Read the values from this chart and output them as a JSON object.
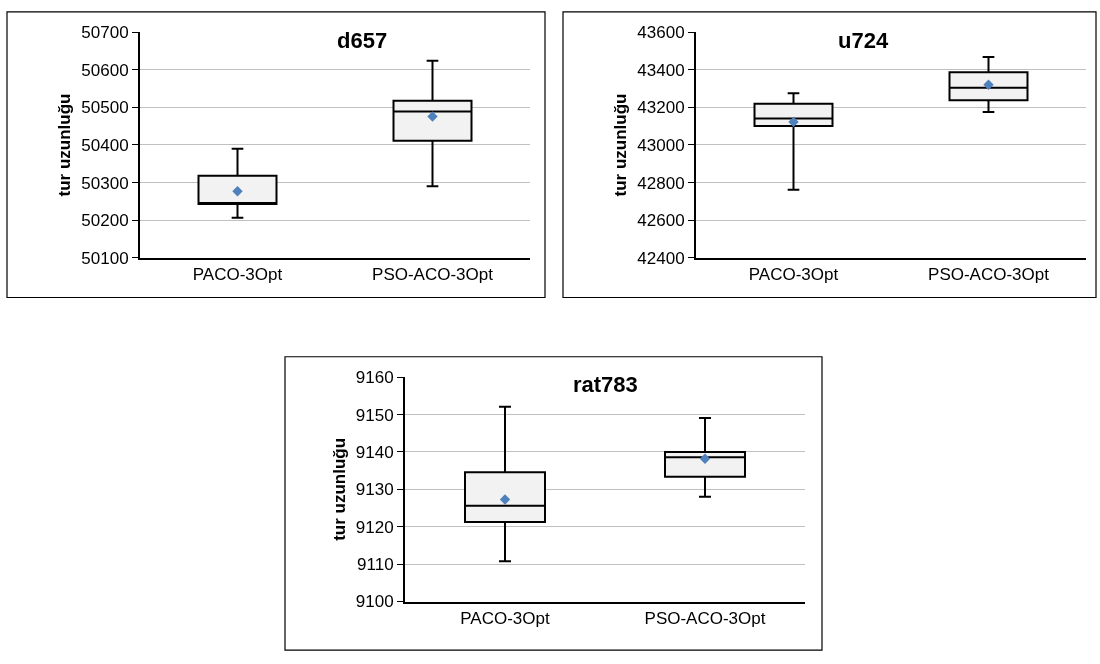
{
  "chart_data": [
    {
      "type": "box",
      "title": "d657",
      "ylabel": "tur uzunluğu",
      "categories": [
        "PACO-3Opt",
        "PSO-ACO-3Opt"
      ],
      "color": "#f2f2f2",
      "marker": "diamond",
      "grid": "y",
      "ylim": [
        50100,
        50700
      ],
      "yticks": [
        50100,
        50200,
        50300,
        50400,
        50500,
        50600,
        50700
      ],
      "boxes": [
        {
          "low": 50206,
          "q1": 50243,
          "median": 50243,
          "q3": 50318,
          "high": 50390,
          "mean": 50277
        },
        {
          "low": 50290,
          "q1": 50411,
          "median": 50489,
          "q3": 50518,
          "high": 50624,
          "mean": 50476
        }
      ]
    },
    {
      "type": "box",
      "title": "u724",
      "ylabel": "tur uzunluğu",
      "categories": [
        "PACO-3Opt",
        "PSO-ACO-3Opt"
      ],
      "color": "#f2f2f2",
      "marker": "diamond",
      "grid": "y",
      "ylim": [
        42400,
        43600
      ],
      "yticks": [
        42400,
        42600,
        42800,
        43000,
        43200,
        43400,
        43600
      ],
      "boxes": [
        {
          "low": 42762,
          "q1": 43101,
          "median": 43141,
          "q3": 43219,
          "high": 43276,
          "mean": 43123
        },
        {
          "low": 43176,
          "q1": 43238,
          "median": 43305,
          "q3": 43387,
          "high": 43469,
          "mean": 43321
        }
      ]
    },
    {
      "type": "box",
      "title": "rat783",
      "ylabel": "tur uzunluğu",
      "categories": [
        "PACO-3Opt",
        "PSO-ACO-3Opt"
      ],
      "color": "#f2f2f2",
      "marker": "diamond",
      "grid": "y",
      "ylim": [
        9100,
        9160
      ],
      "yticks": [
        9100,
        9110,
        9120,
        9130,
        9140,
        9150,
        9160
      ],
      "boxes": [
        {
          "low": 9110.8,
          "q1": 9121.3,
          "median": 9125.6,
          "q3": 9134.6,
          "high": 9152.1,
          "mean": 9127.3
        },
        {
          "low": 9128.0,
          "q1": 9133.4,
          "median": 9138.6,
          "q3": 9140.0,
          "high": 9149.1,
          "mean": 9138.2
        }
      ]
    }
  ]
}
